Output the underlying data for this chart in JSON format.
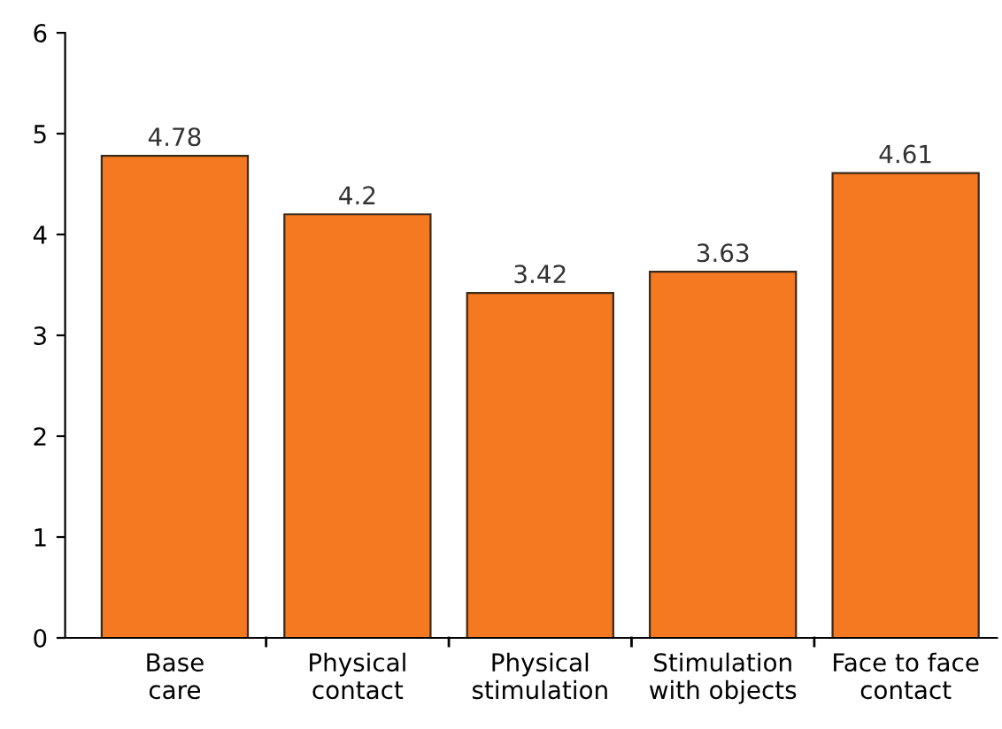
{
  "chart_data": {
    "type": "bar",
    "categories": [
      "Base\ncare",
      "Physical\ncontact",
      "Physical\nstimulation",
      "Stimulation\nwith objects",
      "Face to face\ncontact"
    ],
    "values": [
      4.78,
      4.2,
      3.42,
      3.63,
      4.61
    ],
    "color": "#f47920",
    "ylim": [
      0,
      6
    ],
    "yticks": [
      0,
      1,
      2,
      3,
      4,
      5,
      6
    ],
    "grid": false,
    "data_labels": true
  }
}
